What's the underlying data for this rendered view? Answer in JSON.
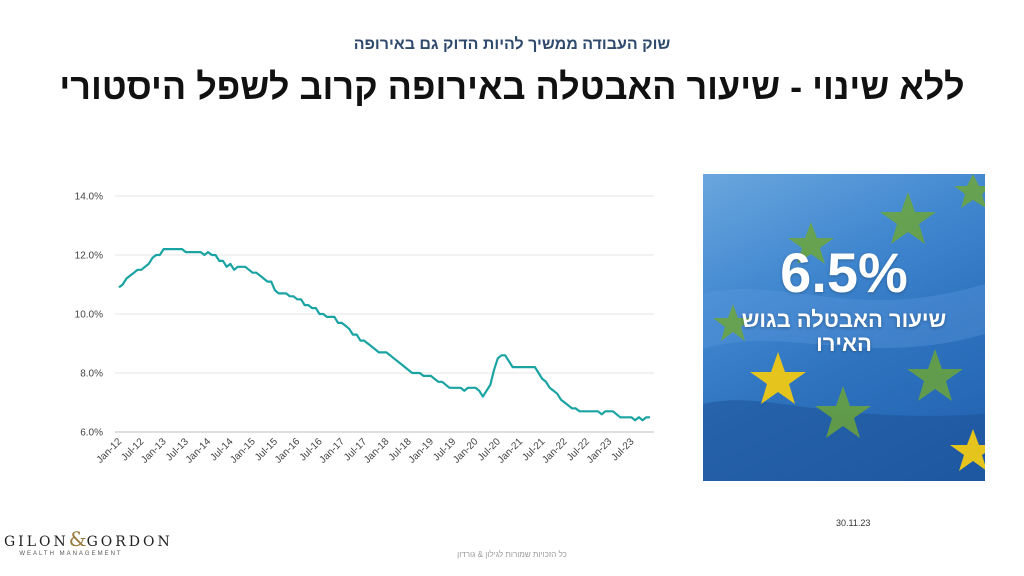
{
  "header": {
    "subtitle": "שוק העבודה ממשיך להיות הדוק גם באירופה",
    "title": "ללא שינוי - שיעור האבטלה באירופה קרוב לשפל היסטורי"
  },
  "panel": {
    "stat_value": "6.5%",
    "stat_label": "שיעור האבטלה בגוש האירו"
  },
  "date": "30.11.23",
  "footer": "כל הזכויות שמורות לגילון & גורדון",
  "logo": {
    "name_left": "GILON",
    "ampersand": "&",
    "name_right": "GORDON",
    "tagline": "WEALTH MANAGEMENT"
  },
  "colors": {
    "line": "#1aa3a3",
    "grid": "#e6e6e6",
    "panel_blue": "#2e72be",
    "star": "#e5c51d"
  },
  "chart_data": {
    "type": "line",
    "title": "",
    "xlabel": "",
    "ylabel": "",
    "ylim": [
      6.0,
      14.0
    ],
    "yticks": [
      "14.0%",
      "12.0%",
      "10.0%",
      "8.0%",
      "6.0%"
    ],
    "ytick_values": [
      14,
      12,
      10,
      8,
      6
    ],
    "grid": true,
    "xticks": [
      "Jan-12",
      "Jul-12",
      "Jan-13",
      "Jul-13",
      "Jan-14",
      "Jul-14",
      "Jan-15",
      "Jul-15",
      "Jan-16",
      "Jul-16",
      "Jan-17",
      "Jul-17",
      "Jan-18",
      "Jul-18",
      "Jan-19",
      "Jul-19",
      "Jan-20",
      "Jul-20",
      "Jan-21",
      "Jul-21",
      "Jan-22",
      "Jul-22",
      "Jan-23",
      "Jul-23"
    ],
    "start": "Jan-12",
    "values": [
      10.9,
      11.0,
      11.2,
      11.3,
      11.4,
      11.5,
      11.5,
      11.6,
      11.7,
      11.9,
      12.0,
      12.0,
      12.2,
      12.2,
      12.2,
      12.2,
      12.2,
      12.2,
      12.1,
      12.1,
      12.1,
      12.1,
      12.1,
      12.0,
      12.1,
      12.0,
      12.0,
      11.8,
      11.8,
      11.6,
      11.7,
      11.5,
      11.6,
      11.6,
      11.6,
      11.5,
      11.4,
      11.4,
      11.3,
      11.2,
      11.1,
      11.1,
      10.8,
      10.7,
      10.7,
      10.7,
      10.6,
      10.6,
      10.5,
      10.5,
      10.3,
      10.3,
      10.2,
      10.2,
      10.0,
      10.0,
      9.9,
      9.9,
      9.9,
      9.7,
      9.7,
      9.6,
      9.5,
      9.3,
      9.3,
      9.1,
      9.1,
      9.0,
      8.9,
      8.8,
      8.7,
      8.7,
      8.7,
      8.6,
      8.5,
      8.4,
      8.3,
      8.2,
      8.1,
      8.0,
      8.0,
      8.0,
      7.9,
      7.9,
      7.9,
      7.8,
      7.7,
      7.7,
      7.6,
      7.5,
      7.5,
      7.5,
      7.5,
      7.4,
      7.5,
      7.5,
      7.5,
      7.4,
      7.2,
      7.4,
      7.6,
      8.1,
      8.5,
      8.6,
      8.6,
      8.4,
      8.2,
      8.2,
      8.2,
      8.2,
      8.2,
      8.2,
      8.2,
      8.0,
      7.8,
      7.7,
      7.5,
      7.4,
      7.3,
      7.1,
      7.0,
      6.9,
      6.8,
      6.8,
      6.7,
      6.7,
      6.7,
      6.7,
      6.7,
      6.7,
      6.6,
      6.7,
      6.7,
      6.7,
      6.6,
      6.5,
      6.5,
      6.5,
      6.5,
      6.4,
      6.5,
      6.4,
      6.5,
      6.5
    ]
  }
}
